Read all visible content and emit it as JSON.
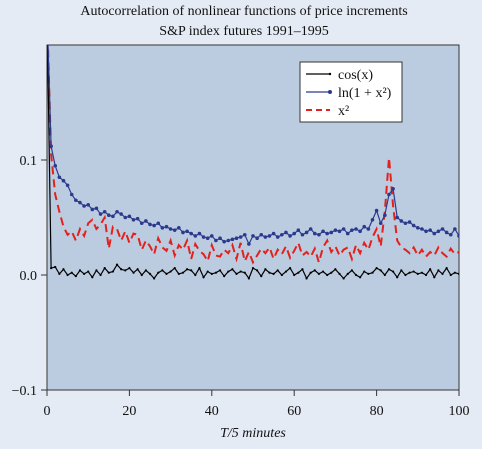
{
  "chart_data": {
    "type": "line",
    "title": "Autocorrelation of nonlinear functions of price increments",
    "subtitle": "S&P index futures 1991–1995",
    "xlabel": "T/5 minutes",
    "ylabel": "",
    "xlim": [
      0,
      100
    ],
    "ylim": [
      -0.1,
      0.2
    ],
    "x_ticks": [
      "0",
      "20",
      "40",
      "60",
      "80",
      "100"
    ],
    "y_ticks": [
      "0.0",
      "0.1",
      "−0.1"
    ],
    "grid": false,
    "legend_position": "top-right",
    "series": [
      {
        "name": "cos(x)",
        "color": "#000000",
        "style": "solid-small-markers",
        "x": [
          0,
          1,
          2,
          3,
          4,
          5,
          6,
          7,
          8,
          9,
          10,
          11,
          12,
          13,
          14,
          15,
          16,
          17,
          18,
          19,
          20,
          21,
          22,
          23,
          24,
          25,
          26,
          27,
          28,
          29,
          30,
          31,
          32,
          33,
          34,
          35,
          36,
          37,
          38,
          39,
          40,
          41,
          42,
          43,
          44,
          45,
          46,
          47,
          48,
          49,
          50,
          51,
          52,
          53,
          54,
          55,
          56,
          57,
          58,
          59,
          60,
          61,
          62,
          63,
          64,
          65,
          66,
          67,
          68,
          69,
          70,
          71,
          72,
          73,
          74,
          75,
          76,
          77,
          78,
          79,
          80,
          81,
          82,
          83,
          84,
          85,
          86,
          87,
          88,
          89,
          90,
          91,
          92,
          93,
          94,
          95,
          96,
          97,
          98,
          99,
          100
        ],
        "values": [
          0.23,
          0.006,
          0.007,
          0.001,
          0.005,
          0.0,
          0.002,
          -0.001,
          0.004,
          0.001,
          0.003,
          -0.002,
          0.004,
          0.0,
          0.006,
          0.002,
          0.003,
          0.009,
          0.005,
          0.004,
          0.006,
          0.002,
          0.005,
          0.0,
          0.004,
          0.001,
          -0.003,
          0.002,
          0.004,
          0.001,
          0.003,
          0.006,
          0.001,
          0.002,
          0.005,
          0.004,
          0.0,
          0.006,
          -0.002,
          0.003,
          0.001,
          0.002,
          0.004,
          -0.001,
          0.003,
          0.005,
          0.001,
          0.003,
          0.002,
          -0.003,
          0.006,
          0.004,
          -0.001,
          0.005,
          0.002,
          0.001,
          0.004,
          0.0,
          0.003,
          0.006,
          0.0,
          0.002,
          0.005,
          -0.003,
          0.002,
          0.004,
          0.001,
          0.003,
          0.0,
          0.002,
          0.005,
          0.001,
          -0.003,
          0.001,
          0.004,
          0.0,
          -0.002,
          0.003,
          0.001,
          0.002,
          0.006,
          0.004,
          0.0,
          0.005,
          0.003,
          -0.002,
          0.004,
          0.0,
          0.002,
          0.003,
          0.001,
          0.002,
          0.0,
          0.005,
          -0.002,
          0.004,
          0.001,
          0.006,
          0.0,
          0.002,
          0.001
        ]
      },
      {
        "name": "ln(1 + x²)",
        "color": "#2b3a8c",
        "style": "solid-circle-markers",
        "x": [
          0,
          1,
          2,
          3,
          4,
          5,
          6,
          7,
          8,
          9,
          10,
          11,
          12,
          13,
          14,
          15,
          16,
          17,
          18,
          19,
          20,
          21,
          22,
          23,
          24,
          25,
          26,
          27,
          28,
          29,
          30,
          31,
          32,
          33,
          34,
          35,
          36,
          37,
          38,
          39,
          40,
          41,
          42,
          43,
          44,
          45,
          46,
          47,
          48,
          49,
          50,
          51,
          52,
          53,
          54,
          55,
          56,
          57,
          58,
          59,
          60,
          61,
          62,
          63,
          64,
          65,
          66,
          67,
          68,
          69,
          70,
          71,
          72,
          73,
          74,
          75,
          76,
          77,
          78,
          79,
          80,
          81,
          82,
          83,
          84,
          85,
          86,
          87,
          88,
          89,
          90,
          91,
          92,
          93,
          94,
          95,
          96,
          97,
          98,
          99,
          100
        ],
        "values": [
          0.23,
          0.112,
          0.095,
          0.085,
          0.082,
          0.078,
          0.07,
          0.065,
          0.063,
          0.06,
          0.061,
          0.057,
          0.058,
          0.053,
          0.055,
          0.052,
          0.051,
          0.055,
          0.053,
          0.05,
          0.051,
          0.048,
          0.049,
          0.045,
          0.047,
          0.044,
          0.043,
          0.045,
          0.041,
          0.042,
          0.04,
          0.039,
          0.041,
          0.037,
          0.038,
          0.036,
          0.034,
          0.036,
          0.033,
          0.032,
          0.034,
          0.03,
          0.032,
          0.029,
          0.03,
          0.031,
          0.032,
          0.033,
          0.035,
          0.027,
          0.034,
          0.032,
          0.035,
          0.033,
          0.034,
          0.036,
          0.033,
          0.035,
          0.037,
          0.034,
          0.036,
          0.039,
          0.035,
          0.037,
          0.04,
          0.036,
          0.035,
          0.038,
          0.036,
          0.037,
          0.039,
          0.038,
          0.04,
          0.036,
          0.039,
          0.04,
          0.038,
          0.042,
          0.04,
          0.048,
          0.056,
          0.045,
          0.052,
          0.07,
          0.075,
          0.05,
          0.047,
          0.045,
          0.046,
          0.043,
          0.041,
          0.04,
          0.038,
          0.039,
          0.036,
          0.038,
          0.04,
          0.037,
          0.035,
          0.04,
          0.034
        ]
      },
      {
        "name": "x²",
        "color": "#e3211c",
        "style": "dashed",
        "x": [
          0,
          1,
          2,
          3,
          4,
          5,
          6,
          7,
          8,
          9,
          10,
          11,
          12,
          13,
          14,
          15,
          16,
          17,
          18,
          19,
          20,
          21,
          22,
          23,
          24,
          25,
          26,
          27,
          28,
          29,
          30,
          31,
          32,
          33,
          34,
          35,
          36,
          37,
          38,
          39,
          40,
          41,
          42,
          43,
          44,
          45,
          46,
          47,
          48,
          49,
          50,
          51,
          52,
          53,
          54,
          55,
          56,
          57,
          58,
          59,
          60,
          61,
          62,
          63,
          64,
          65,
          66,
          67,
          68,
          69,
          70,
          71,
          72,
          73,
          74,
          75,
          76,
          77,
          78,
          79,
          80,
          81,
          82,
          83,
          84,
          85,
          86,
          87,
          88,
          89,
          90,
          91,
          92,
          93,
          94,
          95,
          96,
          97,
          98,
          99,
          100
        ],
        "values": [
          0.23,
          0.105,
          0.07,
          0.055,
          0.042,
          0.035,
          0.038,
          0.03,
          0.04,
          0.034,
          0.045,
          0.048,
          0.04,
          0.044,
          0.05,
          0.023,
          0.042,
          0.04,
          0.03,
          0.038,
          0.028,
          0.036,
          0.035,
          0.022,
          0.03,
          0.025,
          0.018,
          0.032,
          0.024,
          0.021,
          0.03,
          0.017,
          0.026,
          0.022,
          0.03,
          0.014,
          0.027,
          0.021,
          0.018,
          0.012,
          0.026,
          0.017,
          0.016,
          0.022,
          0.019,
          0.026,
          0.014,
          0.028,
          0.012,
          0.02,
          0.011,
          0.017,
          0.023,
          0.019,
          0.024,
          0.014,
          0.022,
          0.018,
          0.025,
          0.015,
          0.021,
          0.028,
          0.017,
          0.02,
          0.016,
          0.023,
          0.011,
          0.024,
          0.03,
          0.02,
          0.025,
          0.017,
          0.022,
          0.024,
          0.014,
          0.026,
          0.019,
          0.028,
          0.022,
          0.033,
          0.04,
          0.025,
          0.055,
          0.102,
          0.06,
          0.03,
          0.024,
          0.022,
          0.019,
          0.024,
          0.017,
          0.022,
          0.016,
          0.02,
          0.017,
          0.024,
          0.019,
          0.016,
          0.023,
          0.018,
          0.02
        ]
      }
    ]
  }
}
